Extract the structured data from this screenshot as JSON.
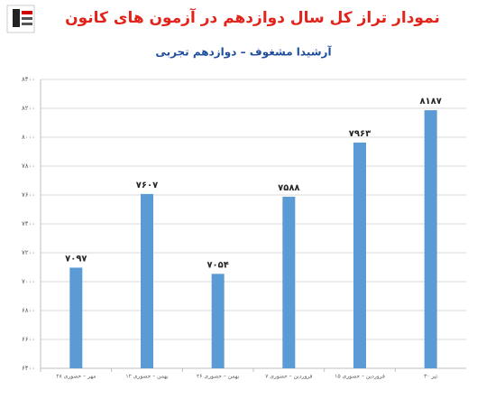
{
  "chart_data": {
    "type": "bar",
    "title": "نمودار تراز کل سال دوازدهم در آزمون های کانون",
    "subtitle": "آرشیدا مشغوف – دوازدهم تجربی",
    "categories": [
      "۲۸ مهر – حضوری",
      "۱۲ بهمن – حضوری",
      "۲۶ بهمن – حضوری",
      "۷ فروردین – حضوری",
      "۱۵ فروردین – حضوری",
      "۳۰ تیر"
    ],
    "values": [
      7097,
      7607,
      7054,
      7588,
      7963,
      8187
    ],
    "value_labels": [
      "۷۰۹۷",
      "۷۶۰۷",
      "۷۰۵۴",
      "۷۵۸۸",
      "۷۹۶۳",
      "۸۱۸۷"
    ],
    "color": "#5b9bd5",
    "ylim": [
      6400,
      8400
    ],
    "yticks": [
      {
        "value": 6400,
        "label": "۶۴۰۰"
      },
      {
        "value": 6600,
        "label": "۶۶۰۰"
      },
      {
        "value": 6800,
        "label": "۶۸۰۰"
      },
      {
        "value": 7000,
        "label": "۷۰۰۰"
      },
      {
        "value": 7200,
        "label": "۷۲۰۰"
      },
      {
        "value": 7400,
        "label": "۷۴۰۰"
      },
      {
        "value": 7600,
        "label": "۷۶۰۰"
      },
      {
        "value": 7800,
        "label": "۷۸۰۰"
      },
      {
        "value": 8000,
        "label": "۸۰۰۰"
      },
      {
        "value": 8200,
        "label": "۸۲۰۰"
      },
      {
        "value": 8400,
        "label": "۸۴۰۰"
      }
    ],
    "grid": true
  }
}
